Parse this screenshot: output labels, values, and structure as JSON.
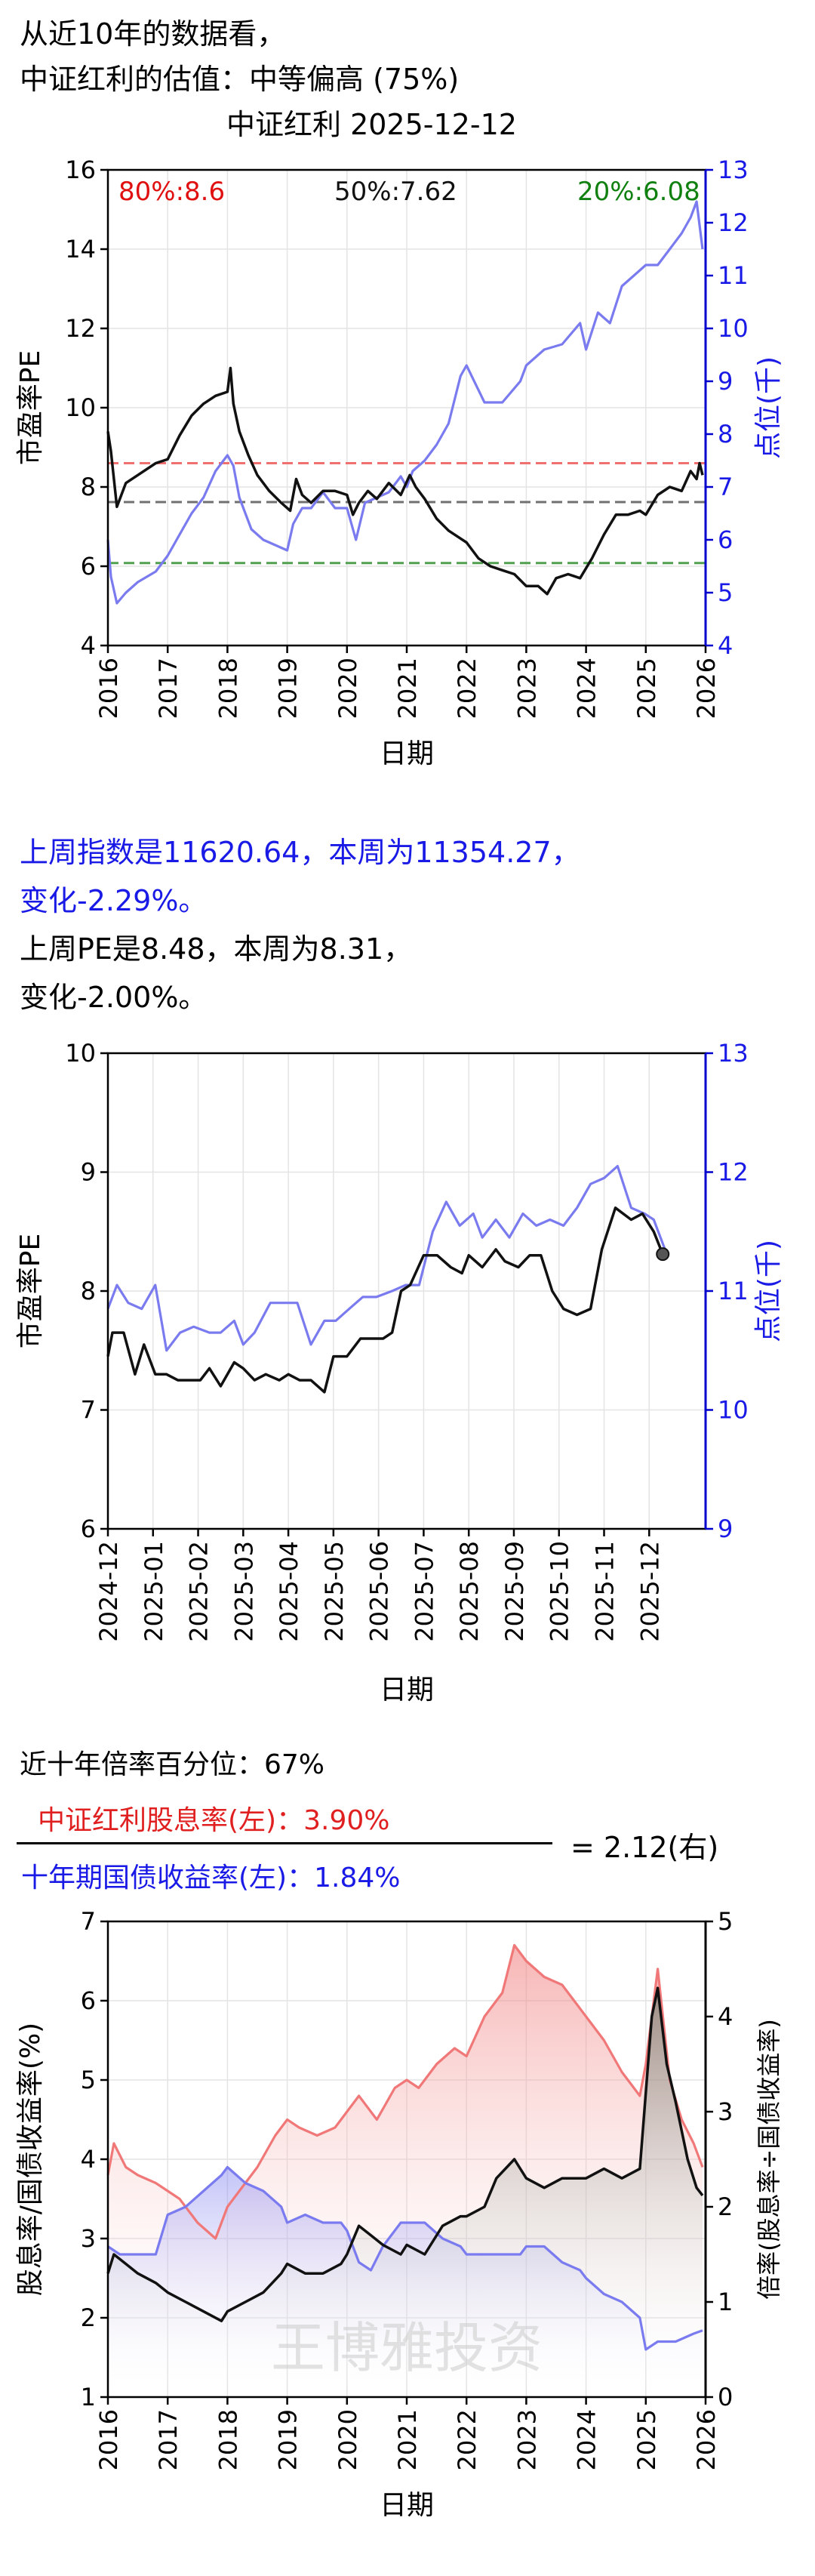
{
  "header": {
    "line1": "从近10年的数据看，",
    "line2": "中证红利的估值：中等偏高 (75%)",
    "chart_title": "中证红利 2025-12-12"
  },
  "weekly": {
    "line1": "上周指数是11620.64，本周为11354.27，",
    "line2": "变化-2.29%。",
    "line3": "上周PE是8.48，本周为8.31，",
    "line4": "变化-2.00%。"
  },
  "ratio": {
    "percentile_text": "近十年倍率百分位：67%",
    "numerator": "中证红利股息率(左)：3.90%",
    "denominator": "十年期国债收益率(左)：1.84%",
    "result": "= 2.12(右)"
  },
  "watermark": "王博雅投资",
  "colors": {
    "black": "#000000",
    "blue": "#7b7bf0",
    "red": "#f07878",
    "axis_blue": "#0000cc",
    "dash_red": "#f07070",
    "dash_gray": "#707070",
    "dash_green": "#50a050"
  },
  "chart_data": [
    {
      "type": "line",
      "title": "中证红利 2025-12-12",
      "xlabel": "日期",
      "ylabel_left": "市盈率PE",
      "ylabel_right": "点位(千)",
      "xlim": [
        2016,
        2026
      ],
      "x_ticks": [
        "2016",
        "2017",
        "2018",
        "2019",
        "2020",
        "2021",
        "2022",
        "2023",
        "2024",
        "2025",
        "2026"
      ],
      "ylim_left": [
        4,
        16
      ],
      "y_ticks_left": [
        4,
        6,
        8,
        10,
        12,
        14,
        16
      ],
      "ylim_right": [
        4,
        13
      ],
      "y_ticks_right": [
        4,
        5,
        6,
        7,
        8,
        9,
        10,
        11,
        12,
        13
      ],
      "grid": true,
      "annotations": [
        {
          "text": "80%:8.6",
          "color": "red",
          "value": 8.6
        },
        {
          "text": "50%:7.62",
          "color": "black",
          "value": 7.62
        },
        {
          "text": "20%:6.08",
          "color": "green",
          "value": 6.08
        }
      ],
      "series": [
        {
          "axis": "left",
          "color": "black",
          "x": [
            2016.0,
            2016.05,
            2016.15,
            2016.3,
            2016.5,
            2016.8,
            2017.0,
            2017.2,
            2017.4,
            2017.6,
            2017.8,
            2018.0,
            2018.05,
            2018.1,
            2018.2,
            2018.35,
            2018.5,
            2018.7,
            2018.9,
            2019.05,
            2019.15,
            2019.25,
            2019.4,
            2019.6,
            2019.8,
            2020.0,
            2020.1,
            2020.2,
            2020.35,
            2020.5,
            2020.7,
            2020.9,
            2021.05,
            2021.15,
            2021.3,
            2021.5,
            2021.7,
            2021.9,
            2022.0,
            2022.2,
            2022.4,
            2022.6,
            2022.8,
            2023.0,
            2023.2,
            2023.35,
            2023.5,
            2023.7,
            2023.9,
            2024.1,
            2024.3,
            2024.5,
            2024.7,
            2024.9,
            2025.0,
            2025.2,
            2025.4,
            2025.6,
            2025.75,
            2025.85,
            2025.9,
            2025.95
          ],
          "y": [
            9.4,
            8.9,
            7.5,
            8.1,
            8.3,
            8.6,
            8.7,
            9.3,
            9.8,
            10.1,
            10.3,
            10.4,
            11.0,
            10.1,
            9.4,
            8.8,
            8.3,
            7.9,
            7.6,
            7.4,
            8.2,
            7.8,
            7.6,
            7.9,
            7.9,
            7.8,
            7.3,
            7.6,
            7.9,
            7.7,
            8.1,
            7.8,
            8.3,
            8.0,
            7.7,
            7.2,
            6.9,
            6.7,
            6.6,
            6.2,
            6.0,
            5.9,
            5.8,
            5.5,
            5.5,
            5.3,
            5.7,
            5.8,
            5.7,
            6.2,
            6.8,
            7.3,
            7.3,
            7.4,
            7.3,
            7.8,
            8.0,
            7.9,
            8.4,
            8.2,
            8.6,
            8.3
          ]
        },
        {
          "axis": "right",
          "color": "blue",
          "x": [
            2016.0,
            2016.05,
            2016.15,
            2016.3,
            2016.5,
            2016.8,
            2017.0,
            2017.2,
            2017.4,
            2017.6,
            2017.8,
            2018.0,
            2018.1,
            2018.2,
            2018.4,
            2018.6,
            2018.8,
            2019.0,
            2019.1,
            2019.25,
            2019.4,
            2019.6,
            2019.8,
            2020.0,
            2020.15,
            2020.3,
            2020.5,
            2020.7,
            2020.9,
            2021.0,
            2021.1,
            2021.3,
            2021.5,
            2021.6,
            2021.7,
            2021.9,
            2022.0,
            2022.3,
            2022.6,
            2022.9,
            2023.0,
            2023.3,
            2023.6,
            2023.9,
            2024.0,
            2024.2,
            2024.4,
            2024.6,
            2024.8,
            2025.0,
            2025.2,
            2025.4,
            2025.6,
            2025.75,
            2025.85,
            2025.95
          ],
          "y": [
            6.0,
            5.3,
            4.8,
            5.0,
            5.2,
            5.4,
            5.7,
            6.1,
            6.5,
            6.8,
            7.3,
            7.6,
            7.4,
            6.8,
            6.2,
            6.0,
            5.9,
            5.8,
            6.3,
            6.6,
            6.6,
            6.9,
            6.6,
            6.6,
            6.0,
            6.7,
            6.8,
            6.9,
            7.2,
            7.0,
            7.3,
            7.5,
            7.8,
            8.0,
            8.2,
            9.1,
            9.3,
            8.6,
            8.6,
            9.0,
            9.3,
            9.6,
            9.7,
            10.1,
            9.6,
            10.3,
            10.1,
            10.8,
            11.0,
            11.2,
            11.2,
            11.5,
            11.8,
            12.1,
            12.4,
            11.5
          ]
        }
      ]
    },
    {
      "type": "line",
      "xlabel": "日期",
      "ylabel_left": "市盈率PE",
      "ylabel_right": "点位(千)",
      "x_ticks": [
        "2024-12",
        "2025-01",
        "2025-02",
        "2025-03",
        "2025-04",
        "2025-05",
        "2025-06",
        "2025-07",
        "2025-08",
        "2025-09",
        "2025-10",
        "2025-11",
        "2025-12"
      ],
      "xlim": [
        0,
        13.25
      ],
      "ylim_left": [
        6,
        10
      ],
      "y_ticks_left": [
        6,
        7,
        8,
        9,
        10
      ],
      "ylim_right": [
        9,
        13
      ],
      "y_ticks_right": [
        9,
        10,
        11,
        12,
        13
      ],
      "grid": true,
      "series": [
        {
          "axis": "left",
          "color": "black",
          "x": [
            0,
            0.1,
            0.35,
            0.6,
            0.8,
            1.05,
            1.3,
            1.55,
            1.8,
            2.05,
            2.25,
            2.5,
            2.8,
            3.0,
            3.25,
            3.5,
            3.8,
            4.0,
            4.25,
            4.5,
            4.8,
            5.0,
            5.3,
            5.6,
            5.85,
            6.1,
            6.3,
            6.5,
            6.7,
            7.0,
            7.3,
            7.6,
            7.85,
            8.0,
            8.3,
            8.6,
            8.8,
            9.1,
            9.35,
            9.6,
            9.85,
            10.1,
            10.4,
            10.7,
            10.95,
            11.25,
            11.6,
            11.85,
            12.1,
            12.3
          ],
          "y": [
            7.45,
            7.65,
            7.65,
            7.3,
            7.55,
            7.3,
            7.3,
            7.25,
            7.25,
            7.25,
            7.35,
            7.2,
            7.4,
            7.35,
            7.25,
            7.3,
            7.25,
            7.3,
            7.25,
            7.25,
            7.15,
            7.45,
            7.45,
            7.6,
            7.6,
            7.6,
            7.65,
            8.0,
            8.05,
            8.3,
            8.3,
            8.2,
            8.15,
            8.3,
            8.2,
            8.35,
            8.25,
            8.2,
            8.3,
            8.3,
            8.0,
            7.85,
            7.8,
            7.85,
            8.35,
            8.7,
            8.6,
            8.65,
            8.5,
            8.31
          ]
        },
        {
          "axis": "right",
          "color": "blue",
          "x": [
            0,
            0.2,
            0.45,
            0.75,
            1.05,
            1.3,
            1.6,
            1.9,
            2.25,
            2.5,
            2.8,
            3.0,
            3.25,
            3.6,
            3.9,
            4.2,
            4.5,
            4.8,
            5.05,
            5.35,
            5.65,
            5.95,
            6.3,
            6.6,
            6.9,
            7.2,
            7.5,
            7.8,
            8.1,
            8.3,
            8.6,
            8.9,
            9.2,
            9.5,
            9.8,
            10.1,
            10.4,
            10.7,
            11.0,
            11.3,
            11.6,
            11.9,
            12.1,
            12.35
          ],
          "y": [
            10.85,
            11.05,
            10.9,
            10.85,
            11.05,
            10.5,
            10.65,
            10.7,
            10.65,
            10.65,
            10.75,
            10.55,
            10.65,
            10.9,
            10.9,
            10.9,
            10.55,
            10.75,
            10.75,
            10.85,
            10.95,
            10.95,
            11.0,
            11.05,
            11.05,
            11.5,
            11.75,
            11.55,
            11.65,
            11.45,
            11.6,
            11.45,
            11.65,
            11.55,
            11.6,
            11.55,
            11.7,
            11.9,
            11.95,
            12.05,
            11.7,
            11.65,
            11.6,
            11.35
          ]
        }
      ]
    },
    {
      "type": "area",
      "xlabel": "日期",
      "ylabel_left": "股息率/国债收益率(%)",
      "ylabel_right": "倍率(股息率÷国债收益率)",
      "xlim": [
        2016,
        2026
      ],
      "x_ticks": [
        "2016",
        "2017",
        "2018",
        "2019",
        "2020",
        "2021",
        "2022",
        "2023",
        "2024",
        "2025",
        "2026"
      ],
      "ylim_left": [
        1,
        7
      ],
      "y_ticks_left": [
        1,
        2,
        3,
        4,
        5,
        6,
        7
      ],
      "ylim_right": [
        0,
        5
      ],
      "y_ticks_right": [
        0,
        1,
        2,
        3,
        4,
        5
      ],
      "grid": true,
      "series": [
        {
          "name": "中证红利股息率",
          "axis": "left",
          "color": "red",
          "x": [
            2016.0,
            2016.1,
            2016.3,
            2016.5,
            2016.8,
            2017.0,
            2017.2,
            2017.5,
            2017.8,
            2018.0,
            2018.2,
            2018.5,
            2018.8,
            2019.0,
            2019.2,
            2019.5,
            2019.8,
            2020.0,
            2020.2,
            2020.5,
            2020.8,
            2021.0,
            2021.2,
            2021.5,
            2021.8,
            2022.0,
            2022.3,
            2022.6,
            2022.8,
            2023.0,
            2023.3,
            2023.6,
            2023.8,
            2024.0,
            2024.3,
            2024.6,
            2024.9,
            2025.0,
            2025.2,
            2025.4,
            2025.6,
            2025.8,
            2025.95
          ],
          "y": [
            3.8,
            4.2,
            3.9,
            3.8,
            3.7,
            3.6,
            3.5,
            3.2,
            3.0,
            3.4,
            3.6,
            3.9,
            4.3,
            4.5,
            4.4,
            4.3,
            4.4,
            4.6,
            4.8,
            4.5,
            4.9,
            5.0,
            4.9,
            5.2,
            5.4,
            5.3,
            5.8,
            6.1,
            6.7,
            6.5,
            6.3,
            6.2,
            6.0,
            5.8,
            5.5,
            5.1,
            4.8,
            5.2,
            6.4,
            5.0,
            4.5,
            4.2,
            3.9
          ]
        },
        {
          "name": "十年期国债收益率",
          "axis": "left",
          "color": "blue",
          "x": [
            2016.0,
            2016.2,
            2016.5,
            2016.8,
            2017.0,
            2017.3,
            2017.6,
            2017.9,
            2018.0,
            2018.3,
            2018.6,
            2018.9,
            2019.0,
            2019.3,
            2019.6,
            2019.9,
            2020.0,
            2020.2,
            2020.4,
            2020.6,
            2020.9,
            2021.0,
            2021.3,
            2021.6,
            2021.9,
            2022.0,
            2022.3,
            2022.6,
            2022.9,
            2023.0,
            2023.3,
            2023.6,
            2023.9,
            2024.0,
            2024.3,
            2024.6,
            2024.9,
            2025.0,
            2025.2,
            2025.5,
            2025.8,
            2025.95
          ],
          "y": [
            2.9,
            2.8,
            2.8,
            2.8,
            3.3,
            3.4,
            3.6,
            3.8,
            3.9,
            3.7,
            3.6,
            3.4,
            3.2,
            3.3,
            3.2,
            3.2,
            3.1,
            2.7,
            2.6,
            2.9,
            3.2,
            3.2,
            3.2,
            3.0,
            2.9,
            2.8,
            2.8,
            2.8,
            2.8,
            2.9,
            2.9,
            2.7,
            2.6,
            2.5,
            2.3,
            2.2,
            2.0,
            1.6,
            1.7,
            1.7,
            1.8,
            1.84
          ]
        },
        {
          "name": "倍率",
          "axis": "right",
          "color": "black",
          "x": [
            2016.0,
            2016.1,
            2016.3,
            2016.5,
            2016.8,
            2017.0,
            2017.3,
            2017.6,
            2017.9,
            2018.0,
            2018.3,
            2018.6,
            2018.9,
            2019.0,
            2019.3,
            2019.6,
            2019.9,
            2020.0,
            2020.2,
            2020.4,
            2020.6,
            2020.9,
            2021.0,
            2021.3,
            2021.6,
            2021.9,
            2022.0,
            2022.3,
            2022.5,
            2022.8,
            2023.0,
            2023.3,
            2023.6,
            2023.9,
            2024.0,
            2024.3,
            2024.6,
            2024.9,
            2025.0,
            2025.1,
            2025.2,
            2025.35,
            2025.5,
            2025.7,
            2025.85,
            2025.95
          ],
          "y": [
            1.3,
            1.5,
            1.4,
            1.3,
            1.2,
            1.1,
            1.0,
            0.9,
            0.8,
            0.9,
            1.0,
            1.1,
            1.3,
            1.4,
            1.3,
            1.3,
            1.4,
            1.5,
            1.8,
            1.7,
            1.6,
            1.5,
            1.6,
            1.5,
            1.8,
            1.9,
            1.9,
            2.0,
            2.3,
            2.5,
            2.3,
            2.2,
            2.3,
            2.3,
            2.3,
            2.4,
            2.3,
            2.4,
            3.2,
            4.0,
            4.3,
            3.5,
            3.1,
            2.5,
            2.2,
            2.12
          ]
        }
      ]
    }
  ]
}
